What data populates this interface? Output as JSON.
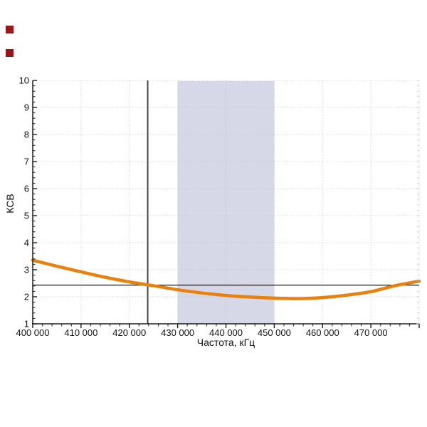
{
  "page": {
    "background": "#ffffff",
    "markers": [
      {
        "name": "red-square-1",
        "x": 8,
        "y": 36,
        "color": "#9b1616"
      },
      {
        "name": "red-square-2",
        "x": 8,
        "y": 69,
        "color": "#9b1616"
      }
    ]
  },
  "chart_data": {
    "type": "line",
    "title": "",
    "xlabel": "Частота, кГц",
    "ylabel": "КСВ",
    "xlim": [
      400000,
      480000
    ],
    "ylim": [
      1,
      10
    ],
    "x_major_tick_step": 10000,
    "x_minor_tick_step": 2000,
    "y_major_tick_step": 1,
    "y_minor_tick_step": 0.2,
    "x_tick_labels": [
      {
        "value": 400000,
        "label": "400 000"
      },
      {
        "value": 410000,
        "label": "410 000"
      },
      {
        "value": 420000,
        "label": "420 000"
      },
      {
        "value": 430000,
        "label": "430 000"
      },
      {
        "value": 440000,
        "label": "440 000"
      },
      {
        "value": 450000,
        "label": "450 000"
      },
      {
        "value": 460000,
        "label": "460 000"
      },
      {
        "value": 470000,
        "label": "470 000"
      }
    ],
    "y_tick_labels": [
      {
        "value": 1,
        "label": "1"
      },
      {
        "value": 2,
        "label": "2"
      },
      {
        "value": 3,
        "label": "3"
      },
      {
        "value": 4,
        "label": "4"
      },
      {
        "value": 5,
        "label": "5"
      },
      {
        "value": 6,
        "label": "6"
      },
      {
        "value": 7,
        "label": "7"
      },
      {
        "value": 8,
        "label": "8"
      },
      {
        "value": 9,
        "label": "9"
      },
      {
        "value": 10,
        "label": "10"
      }
    ],
    "grid": {
      "style": "dotted",
      "color": "#c6c6c6",
      "legend": "none"
    },
    "highlight_band": {
      "x_from": 430000,
      "x_to": 450000,
      "color": "#d7d8e7"
    },
    "crosshair": {
      "x_value": 423800,
      "y_value": 2.43,
      "vline_color": "#454545",
      "hline_color": "#141414"
    },
    "axis_color": "#1a1a1a",
    "right_axis_color": "#c9c9c9",
    "series": [
      {
        "name": "КСВ",
        "color": "#e8810d",
        "points": [
          [
            400000,
            3.35
          ],
          [
            405000,
            3.13
          ],
          [
            410000,
            2.92
          ],
          [
            415000,
            2.72
          ],
          [
            420000,
            2.55
          ],
          [
            425000,
            2.41
          ],
          [
            430000,
            2.26
          ],
          [
            435000,
            2.14
          ],
          [
            440000,
            2.05
          ],
          [
            445000,
            1.99
          ],
          [
            450000,
            1.95
          ],
          [
            455000,
            1.93
          ],
          [
            460000,
            1.97
          ],
          [
            465000,
            2.06
          ],
          [
            470000,
            2.19
          ],
          [
            475000,
            2.41
          ],
          [
            480000,
            2.58
          ]
        ]
      }
    ]
  }
}
